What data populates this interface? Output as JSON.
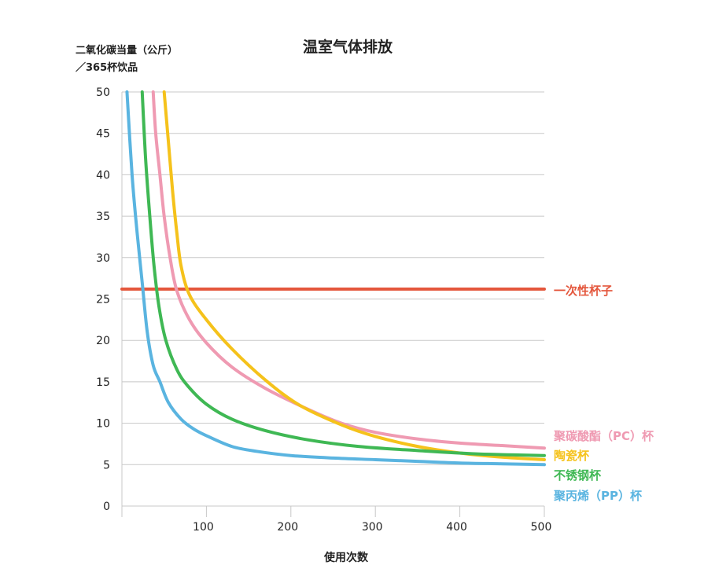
{
  "chart_data": {
    "type": "line",
    "title": "温室气体排放",
    "ylabel_line1": "二氧化碳当量（公斤）",
    "ylabel_line2": "／365杯饮品",
    "xlabel": "使用次数",
    "xlim": [
      0,
      500
    ],
    "ylim": [
      0,
      50
    ],
    "x_ticks": [
      100,
      200,
      300,
      400,
      500
    ],
    "y_ticks": [
      0,
      5,
      10,
      15,
      20,
      25,
      30,
      35,
      40,
      45,
      50
    ],
    "grid": true,
    "legend": "right-of-lines",
    "series": [
      {
        "name": "一次性杯子",
        "color": "#e4573d",
        "points": [
          [
            0,
            26.2
          ],
          [
            500,
            26.2
          ]
        ]
      },
      {
        "name": "聚碳酸酯（PC）杯",
        "color": "#ef9ab2",
        "points": [
          [
            37,
            50
          ],
          [
            40,
            45
          ],
          [
            45,
            40
          ],
          [
            50,
            35
          ],
          [
            57,
            30
          ],
          [
            65,
            26
          ],
          [
            80,
            22.5
          ],
          [
            100,
            19.7
          ],
          [
            130,
            16.8
          ],
          [
            170,
            14.2
          ],
          [
            220,
            11.7
          ],
          [
            260,
            10
          ],
          [
            300,
            8.9
          ],
          [
            350,
            8.1
          ],
          [
            400,
            7.6
          ],
          [
            450,
            7.3
          ],
          [
            500,
            7
          ]
        ]
      },
      {
        "name": "陶瓷杯",
        "color": "#f5c21b",
        "points": [
          [
            50,
            50
          ],
          [
            55,
            44
          ],
          [
            60,
            38
          ],
          [
            65,
            33
          ],
          [
            70,
            29
          ],
          [
            80,
            25.5
          ],
          [
            100,
            22.5
          ],
          [
            130,
            19
          ],
          [
            170,
            15.2
          ],
          [
            210,
            12.2
          ],
          [
            260,
            9.8
          ],
          [
            300,
            8.4
          ],
          [
            350,
            7.2
          ],
          [
            400,
            6.4
          ],
          [
            450,
            5.9
          ],
          [
            500,
            5.6
          ]
        ]
      },
      {
        "name": "不锈钢杯",
        "color": "#3fb854",
        "points": [
          [
            24,
            50
          ],
          [
            28,
            42
          ],
          [
            33,
            35
          ],
          [
            38,
            29
          ],
          [
            44,
            24
          ],
          [
            52,
            20
          ],
          [
            65,
            16.5
          ],
          [
            78,
            14.5
          ],
          [
            100,
            12.3
          ],
          [
            130,
            10.5
          ],
          [
            170,
            9.1
          ],
          [
            220,
            8
          ],
          [
            280,
            7.2
          ],
          [
            350,
            6.7
          ],
          [
            420,
            6.3
          ],
          [
            500,
            6.1
          ]
        ]
      },
      {
        "name": "聚丙烯（PP）杯",
        "color": "#5ab4e0",
        "points": [
          [
            6,
            50
          ],
          [
            12,
            40
          ],
          [
            18,
            33
          ],
          [
            24,
            27
          ],
          [
            30,
            21
          ],
          [
            37,
            17
          ],
          [
            45,
            15
          ],
          [
            55,
            12.5
          ],
          [
            70,
            10.5
          ],
          [
            85,
            9.3
          ],
          [
            100,
            8.5
          ],
          [
            130,
            7.2
          ],
          [
            160,
            6.6
          ],
          [
            200,
            6.1
          ],
          [
            250,
            5.8
          ],
          [
            300,
            5.6
          ],
          [
            350,
            5.4
          ],
          [
            400,
            5.2
          ],
          [
            450,
            5.1
          ],
          [
            500,
            5
          ]
        ]
      }
    ]
  }
}
